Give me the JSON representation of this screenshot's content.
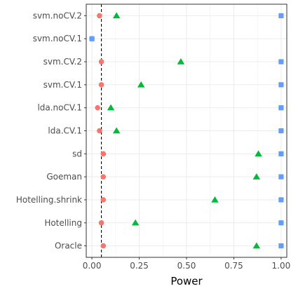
{
  "chart_data": {
    "type": "scatter",
    "xlabel": "Power",
    "ylabel": "",
    "title": "",
    "xlim": [
      -0.03,
      1.03
    ],
    "x_ticks": [
      {
        "value": 0.0,
        "label": "0.00"
      },
      {
        "value": 0.25,
        "label": "0.25"
      },
      {
        "value": 0.5,
        "label": "0.50"
      },
      {
        "value": 0.75,
        "label": "0.75"
      },
      {
        "value": 1.0,
        "label": "1.00"
      }
    ],
    "categories": [
      "svm.noCV.2",
      "svm.noCV.1",
      "svm.CV.2",
      "svm.CV.1",
      "lda.noCV.1",
      "lda.CV.1",
      "sd",
      "Goeman",
      "Hotelling.shrink",
      "Hotelling",
      "Oracle"
    ],
    "reference_line": {
      "x": 0.05,
      "style": "dashed",
      "color": "#000000"
    },
    "grid": true,
    "legend": "none",
    "series": [
      {
        "shape": "circle",
        "color": "#F8766D",
        "values": [
          0.04,
          0.0,
          0.05,
          0.05,
          0.03,
          0.04,
          0.06,
          0.06,
          0.06,
          0.05,
          0.06
        ]
      },
      {
        "shape": "triangle",
        "color": "#00BA38",
        "values": [
          0.13,
          null,
          0.47,
          0.26,
          0.1,
          0.13,
          0.88,
          0.87,
          0.65,
          0.23,
          0.87
        ]
      },
      {
        "shape": "square",
        "color": "#619CFF",
        "values": [
          1.0,
          0.0,
          1.0,
          1.0,
          1.0,
          1.0,
          1.0,
          1.0,
          1.0,
          1.0,
          1.0
        ]
      }
    ]
  }
}
